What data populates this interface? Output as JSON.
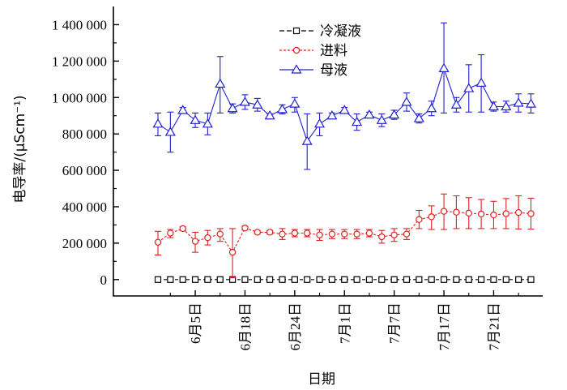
{
  "chart_data": {
    "type": "line",
    "title": "",
    "xlabel": "日期",
    "ylabel": "电导率/(μScm⁻¹)",
    "ylim": [
      -90000,
      1500000
    ],
    "yticks": [
      0,
      200000,
      400000,
      600000,
      800000,
      1000000,
      1200000,
      1400000
    ],
    "ytick_labels": [
      "0",
      "200 000",
      "400 000",
      "600 000",
      "800 000",
      "1 000 000",
      "1 200 000",
      "1 400 000"
    ],
    "x_tick_labels": [
      "6月5日",
      "6月18日",
      "6月24日",
      "7月1日",
      "7月7日",
      "7月17日",
      "7月21日"
    ],
    "x_tick_index": [
      3,
      7,
      11,
      15,
      19,
      23,
      27
    ],
    "n_points": 31,
    "grid": false,
    "legend_position": "top",
    "series": [
      {
        "name": "冷凝液",
        "color": "#000000",
        "marker": "square",
        "values": [
          0,
          0,
          0,
          0,
          0,
          0,
          0,
          0,
          0,
          0,
          0,
          0,
          0,
          0,
          0,
          0,
          0,
          0,
          0,
          0,
          0,
          0,
          0,
          0,
          0,
          0,
          0,
          0,
          0,
          0,
          0
        ],
        "err_up": [
          0,
          0,
          0,
          0,
          0,
          0,
          0,
          0,
          0,
          0,
          0,
          0,
          0,
          0,
          0,
          0,
          0,
          0,
          0,
          0,
          0,
          0,
          0,
          0,
          0,
          0,
          0,
          0,
          0,
          0,
          0
        ],
        "err_down": [
          0,
          0,
          0,
          0,
          0,
          0,
          0,
          0,
          0,
          0,
          0,
          0,
          0,
          0,
          0,
          0,
          0,
          0,
          0,
          0,
          0,
          0,
          0,
          0,
          0,
          0,
          0,
          0,
          0,
          0,
          0
        ]
      },
      {
        "name": "进料",
        "color": "#e02020",
        "marker": "circle",
        "values": [
          205000,
          255000,
          280000,
          210000,
          230000,
          250000,
          150000,
          283000,
          260000,
          260000,
          250000,
          255000,
          255000,
          245000,
          250000,
          250000,
          250000,
          255000,
          235000,
          245000,
          250000,
          330000,
          345000,
          375000,
          370000,
          365000,
          360000,
          355000,
          362000,
          368000,
          362000
        ],
        "err_up": [
          60000,
          20000,
          10000,
          50000,
          40000,
          30000,
          130000,
          10000,
          8000,
          10000,
          30000,
          20000,
          20000,
          30000,
          25000,
          25000,
          25000,
          20000,
          35000,
          35000,
          30000,
          50000,
          60000,
          95000,
          90000,
          85000,
          80000,
          75000,
          83000,
          92000,
          85000
        ],
        "err_down": [
          70000,
          25000,
          10000,
          60000,
          40000,
          40000,
          140000,
          10000,
          8000,
          10000,
          30000,
          20000,
          20000,
          30000,
          25000,
          25000,
          25000,
          20000,
          35000,
          35000,
          30000,
          50000,
          70000,
          100000,
          90000,
          85000,
          80000,
          75000,
          82000,
          90000,
          85000
        ]
      },
      {
        "name": "母液",
        "color": "#2020d0",
        "marker": "triangle",
        "values": [
          855000,
          810000,
          930000,
          875000,
          855000,
          1075000,
          940000,
          975000,
          960000,
          900000,
          935000,
          965000,
          760000,
          855000,
          900000,
          930000,
          865000,
          905000,
          875000,
          905000,
          975000,
          885000,
          940000,
          1160000,
          960000,
          1050000,
          1080000,
          950000,
          950000,
          970000,
          965000
        ],
        "err_up": [
          60000,
          110000,
          15000,
          40000,
          60000,
          150000,
          25000,
          40000,
          35000,
          10000,
          25000,
          35000,
          150000,
          60000,
          15000,
          15000,
          45000,
          15000,
          35000,
          25000,
          50000,
          25000,
          40000,
          250000,
          40000,
          130000,
          155000,
          25000,
          30000,
          50000,
          55000
        ],
        "err_down": [
          65000,
          110000,
          15000,
          40000,
          60000,
          160000,
          25000,
          40000,
          35000,
          10000,
          25000,
          45000,
          155000,
          65000,
          15000,
          15000,
          45000,
          15000,
          35000,
          25000,
          50000,
          25000,
          40000,
          245000,
          40000,
          130000,
          160000,
          25000,
          30000,
          50000,
          50000
        ]
      }
    ]
  }
}
